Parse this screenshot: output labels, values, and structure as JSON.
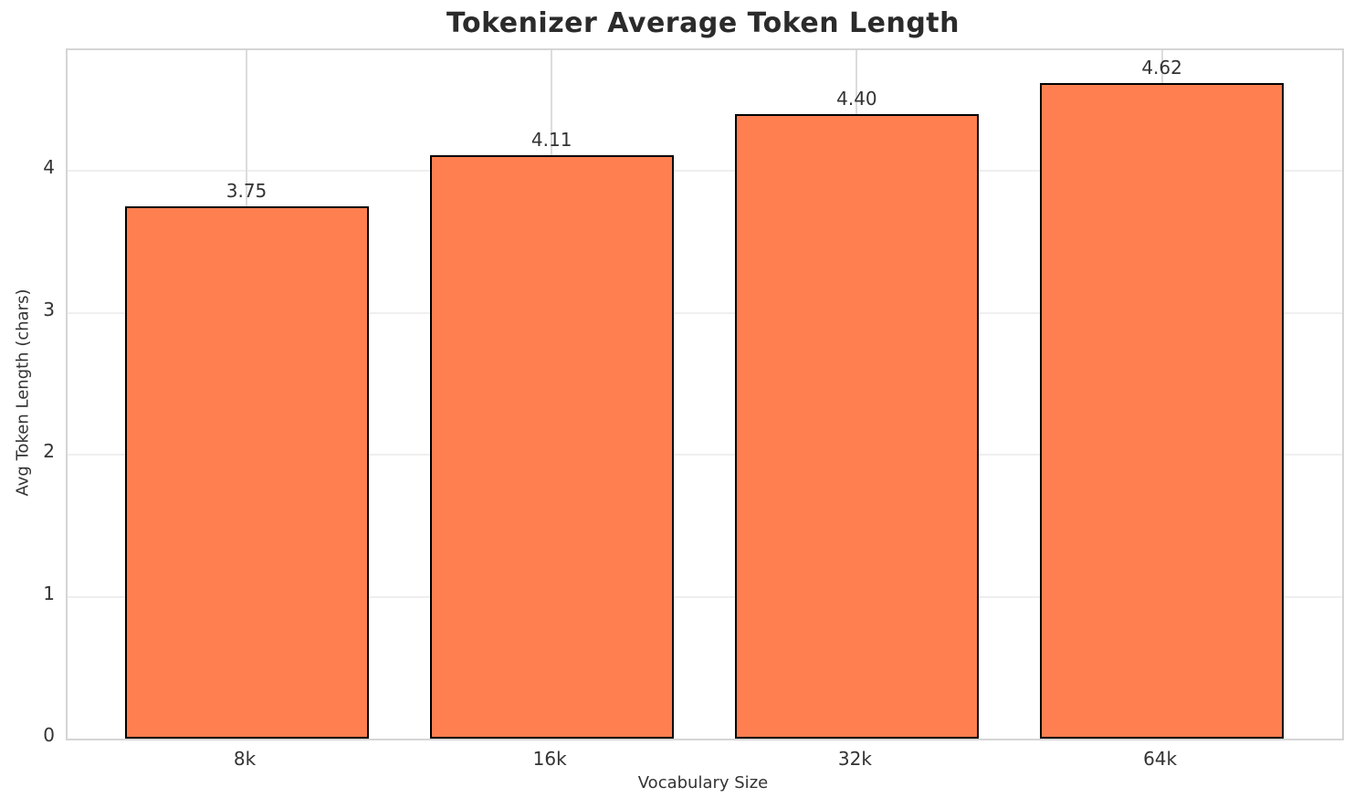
{
  "chart_data": {
    "type": "bar",
    "title": "Tokenizer Average Token Length",
    "xlabel": "Vocabulary Size",
    "ylabel": "Avg Token Length (chars)",
    "categories": [
      "8k",
      "16k",
      "32k",
      "64k"
    ],
    "values": [
      3.75,
      4.11,
      4.4,
      4.62
    ],
    "bar_labels": [
      "3.75",
      "4.11",
      "4.40",
      "4.62"
    ],
    "y_ticks": [
      0,
      1,
      2,
      3,
      4
    ],
    "ylim": [
      0,
      4.85
    ],
    "grid": true,
    "legend_position": "none",
    "colors": {
      "bar_fill": "#ff7f50",
      "bar_edge": "#000000",
      "grid_horizontal": "#efefef",
      "grid_vertical": "#dcdcdc",
      "spine": "#d5d5d5",
      "title_text": "#2b2b2b",
      "label_text": "#333333"
    }
  }
}
